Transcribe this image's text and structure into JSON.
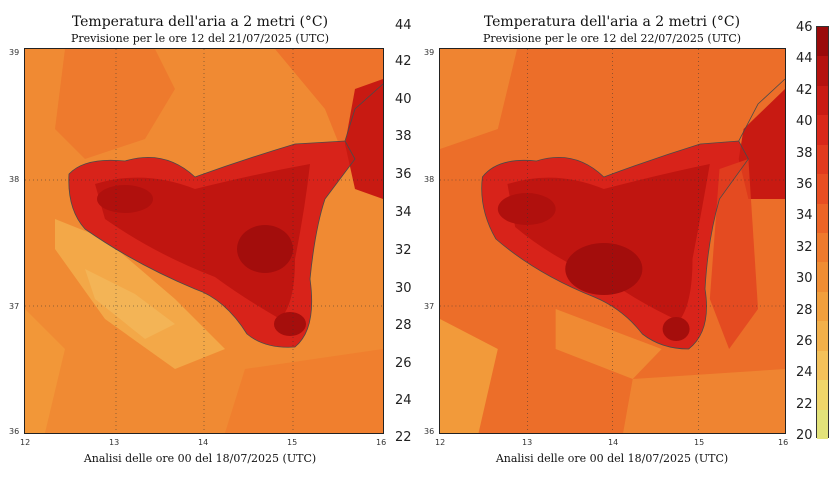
{
  "panels": [
    {
      "title": "Temperatura dell'aria a 2 metri (°C)",
      "subtitle": "Previsione per le ore 12 del 21/07/2025 (UTC)",
      "footer": "Analisi delle ore 00 del 18/07/2025 (UTC)",
      "x_ticks": [
        "12",
        "13",
        "14",
        "15",
        "16"
      ],
      "y_ticks": [
        "39",
        "38",
        "37",
        "36"
      ]
    },
    {
      "title": "Temperatura dell'aria a 2 metri (°C)",
      "subtitle": "Previsione per le ore 12 del 22/07/2025 (UTC)",
      "footer": "Analisi delle ore 00 del 18/07/2025 (UTC)",
      "x_ticks": [
        "12",
        "13",
        "14",
        "15",
        "16"
      ],
      "y_ticks": [
        "39",
        "38",
        "37",
        "36"
      ]
    }
  ],
  "middle_scale": [
    "44",
    "42",
    "40",
    "38",
    "36",
    "34",
    "32",
    "30",
    "28",
    "26",
    "24",
    "22"
  ],
  "colorbar": {
    "labels": [
      "46",
      "44",
      "42",
      "40",
      "38",
      "36",
      "34",
      "32",
      "30",
      "28",
      "26",
      "24",
      "22",
      "20"
    ],
    "colors": [
      "#9a0a0a",
      "#b5120f",
      "#c91b14",
      "#d9281a",
      "#e23b1e",
      "#e84e22",
      "#ec6426",
      "#ef7a2c",
      "#f08d33",
      "#f29f3c",
      "#f3b04a",
      "#f4c15a",
      "#f0d56a",
      "#e3e37a"
    ]
  },
  "colors": {
    "sea_base": "#f08a33",
    "sea_warm": "#ec6a28",
    "sea_cool": "#f3a848",
    "land_hot": "#d8231a",
    "land_hotter": "#c01510",
    "land_core": "#a30d0c",
    "coastline": "#4a4a4a"
  }
}
